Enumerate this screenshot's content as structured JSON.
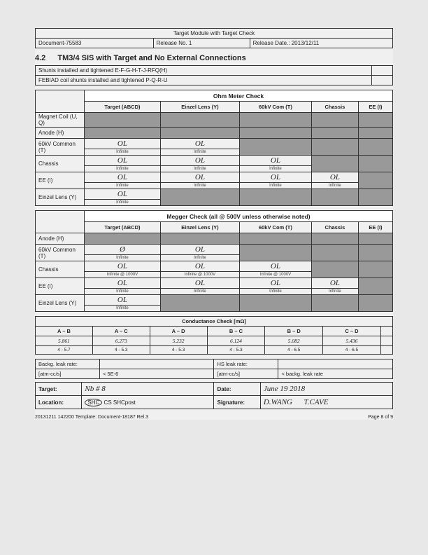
{
  "header": {
    "title": "Target Module with Target Check",
    "doc": "Document-75583",
    "release": "Release No. 1",
    "date": "Release Date.: 2013/12/11"
  },
  "section": "4.2   TM3/4 SIS with Target and No External Connections",
  "shunts1": "Shunts installed and tightened E-F-G-H-T-J-RFQ(H)",
  "shunts2": "FEBIAD coil shunts installed and tightened P-Q-R-U",
  "ohm": {
    "title": "Ohm Meter Check",
    "cols": [
      "Target (ABCD)",
      "Einzel Lens (Y)",
      "60kV Com (T)",
      "Chassis",
      "EE (I)"
    ],
    "rows": [
      {
        "label": "Magnet Coil (U, Q)",
        "cells": [
          {
            "t": "shade"
          },
          {
            "t": "shade"
          },
          {
            "t": "shade"
          },
          {
            "t": "shade"
          },
          {
            "t": "shade"
          }
        ]
      },
      {
        "label": "Anode (H)",
        "cells": [
          {
            "t": "shade"
          },
          {
            "t": "shade"
          },
          {
            "t": "shade"
          },
          {
            "t": "shade"
          },
          {
            "t": "shade"
          }
        ]
      },
      {
        "label": "60kV Common (T)",
        "cells": [
          {
            "t": "v",
            "v": "OL",
            "s": "Infinite"
          },
          {
            "t": "v",
            "v": "OL",
            "s": "Infinite"
          },
          {
            "t": "shade"
          },
          {
            "t": "shade"
          },
          {
            "t": "shade"
          }
        ]
      },
      {
        "label": "Chassis",
        "cells": [
          {
            "t": "v",
            "v": "OL",
            "s": "Infinite"
          },
          {
            "t": "v",
            "v": "OL",
            "s": "Infinite"
          },
          {
            "t": "v",
            "v": "OL",
            "s": "Infinite"
          },
          {
            "t": "shade"
          },
          {
            "t": "shade"
          }
        ]
      },
      {
        "label": "EE (I)",
        "cells": [
          {
            "t": "v",
            "v": "OL",
            "s": "Infinite"
          },
          {
            "t": "v",
            "v": "OL",
            "s": "Infinite"
          },
          {
            "t": "v",
            "v": "OL",
            "s": "Infinite"
          },
          {
            "t": "v",
            "v": "OL",
            "s": "Infinite"
          },
          {
            "t": "shade"
          }
        ]
      },
      {
        "label": "Einzel Lens (Y)",
        "cells": [
          {
            "t": "v",
            "v": "OL",
            "s": "Infinite"
          },
          {
            "t": "shade"
          },
          {
            "t": "shade"
          },
          {
            "t": "shade"
          },
          {
            "t": "shade"
          }
        ]
      }
    ]
  },
  "megger": {
    "title": "Megger Check (all @ 500V unless otherwise noted)",
    "cols": [
      "Target (ABCD)",
      "Einzel Lens (Y)",
      "60kV Com (T)",
      "Chassis",
      "EE (I)"
    ],
    "rows": [
      {
        "label": "Anode (H)",
        "cells": [
          {
            "t": "shade"
          },
          {
            "t": "shade"
          },
          {
            "t": "shade"
          },
          {
            "t": "shade"
          },
          {
            "t": "shade"
          }
        ]
      },
      {
        "label": "60kV Common (T)",
        "cells": [
          {
            "t": "v",
            "v": "Ø",
            "s": "Infinite"
          },
          {
            "t": "v",
            "v": "OL",
            "s": "Infinite"
          },
          {
            "t": "shade"
          },
          {
            "t": "shade"
          },
          {
            "t": "shade"
          }
        ]
      },
      {
        "label": "Chassis",
        "cells": [
          {
            "t": "v",
            "v": "OL",
            "s": "Infinite @ 1000V"
          },
          {
            "t": "v",
            "v": "OL",
            "s": "Infinite @ 1000V"
          },
          {
            "t": "v",
            "v": "OL",
            "s": "Infinite @ 1000V"
          },
          {
            "t": "shade"
          },
          {
            "t": "shade"
          }
        ]
      },
      {
        "label": "EE (I)",
        "cells": [
          {
            "t": "v",
            "v": "OL",
            "s": "Infinite"
          },
          {
            "t": "v",
            "v": "OL",
            "s": "Infinite"
          },
          {
            "t": "v",
            "v": "OL",
            "s": "Infinite"
          },
          {
            "t": "v",
            "v": "OL",
            "s": "Infinite"
          },
          {
            "t": "shade"
          }
        ]
      },
      {
        "label": "Einzel Lens (Y)",
        "cells": [
          {
            "t": "v",
            "v": "OL",
            "s": "Infinite"
          },
          {
            "t": "shade"
          },
          {
            "t": "shade"
          },
          {
            "t": "shade"
          },
          {
            "t": "shade"
          }
        ]
      }
    ]
  },
  "cond": {
    "title": "Conductance Check [mΩ]",
    "cols": [
      "A – B",
      "A – C",
      "A – D",
      "B – C",
      "B – D",
      "C – D",
      ""
    ],
    "vals": [
      "5.861",
      "6.273",
      "5.232",
      "6.124",
      "5.082",
      "5.436",
      ""
    ],
    "ranges": [
      "4 - 5.7",
      "4 - 5.3",
      "4 - 5.3",
      "4 - 5.3",
      "4 - 6.5",
      "4 - 6.5",
      ""
    ]
  },
  "leak": {
    "l1": "Backg. leak rate:",
    "l1v": "",
    "l2": "[atm-cc/s]",
    "l2v": "< 5E-6",
    "r1": "HS leak rate:",
    "r1v": "",
    "r2": "[atm-cc/s]",
    "r2v": "< backg. leak rate"
  },
  "sig": {
    "target_l": "Target:",
    "target_v": "Nb # 8",
    "date_l": "Date:",
    "date_v": "June 19 2018",
    "loc_l": "Location:",
    "loc_v_pre": "SHC",
    "loc_v_post": " CS SHCpost",
    "sign_l": "Signature:",
    "sign_v": "D.WANG   T.CAVE"
  },
  "footer": {
    "left": "20131211  142200 Template: Document-18187 Rel.3",
    "right": "Page 8 of 9"
  }
}
